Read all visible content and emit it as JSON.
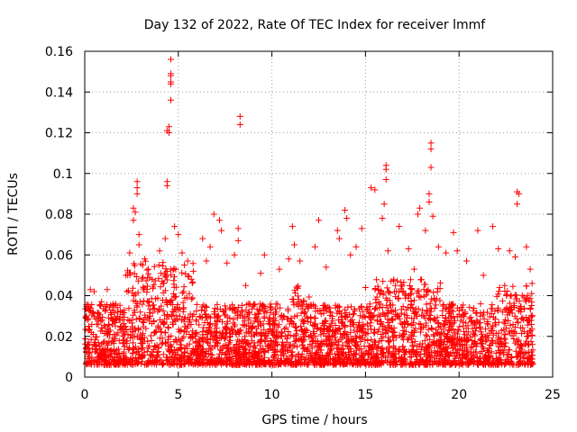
{
  "chart_data": {
    "type": "scatter",
    "title": "Day 132 of 2022, Rate Of TEC Index for receiver lmmf",
    "xlabel": "GPS time / hours",
    "ylabel": "ROTI / TECUs",
    "xlim": [
      0,
      25
    ],
    "ylim": [
      0,
      0.16
    ],
    "x_ticks": [
      0,
      5,
      10,
      15,
      20,
      25
    ],
    "x_tick_labels": [
      "0",
      "5",
      "10",
      "15",
      "20",
      "25"
    ],
    "y_ticks": [
      0,
      0.02,
      0.04,
      0.06,
      0.08,
      0.1,
      0.12,
      0.14,
      0.16
    ],
    "y_tick_labels": [
      "0",
      "0.02",
      "0.04",
      "0.06",
      "0.08",
      "0.1",
      "0.12",
      "0.14",
      "0.16"
    ],
    "grid": true,
    "marker": "+",
    "color": "#ff0000",
    "series": [
      {
        "name": "ROTI",
        "note": "dense baseline band between ~0.005 and ~0.035 TECU across 0-24 h, with scattered outliers",
        "points": [
          [
            0.3,
            0.043
          ],
          [
            0.5,
            0.042
          ],
          [
            0.9,
            0.037
          ],
          [
            1.2,
            0.043
          ],
          [
            1.5,
            0.035
          ],
          [
            2.2,
            0.05
          ],
          [
            2.4,
            0.061
          ],
          [
            2.6,
            0.077
          ],
          [
            2.6,
            0.083
          ],
          [
            2.7,
            0.081
          ],
          [
            2.8,
            0.093
          ],
          [
            2.8,
            0.096
          ],
          [
            2.8,
            0.09
          ],
          [
            2.9,
            0.07
          ],
          [
            2.9,
            0.065
          ],
          [
            3.2,
            0.058
          ],
          [
            3.4,
            0.053
          ],
          [
            4.0,
            0.062
          ],
          [
            4.3,
            0.068
          ],
          [
            4.4,
            0.094
          ],
          [
            4.4,
            0.096
          ],
          [
            4.4,
            0.121
          ],
          [
            4.5,
            0.123
          ],
          [
            4.5,
            0.12
          ],
          [
            4.6,
            0.145
          ],
          [
            4.6,
            0.148
          ],
          [
            4.6,
            0.144
          ],
          [
            4.6,
            0.149
          ],
          [
            4.6,
            0.156
          ],
          [
            4.6,
            0.136
          ],
          [
            4.8,
            0.074
          ],
          [
            5.0,
            0.07
          ],
          [
            5.2,
            0.061
          ],
          [
            5.5,
            0.057
          ],
          [
            5.8,
            0.052
          ],
          [
            6.3,
            0.068
          ],
          [
            6.5,
            0.057
          ],
          [
            6.7,
            0.064
          ],
          [
            6.9,
            0.08
          ],
          [
            7.2,
            0.077
          ],
          [
            7.3,
            0.072
          ],
          [
            7.6,
            0.056
          ],
          [
            8.0,
            0.06
          ],
          [
            8.2,
            0.073
          ],
          [
            8.2,
            0.067
          ],
          [
            8.3,
            0.128
          ],
          [
            8.3,
            0.124
          ],
          [
            8.6,
            0.045
          ],
          [
            9.4,
            0.051
          ],
          [
            9.6,
            0.06
          ],
          [
            10.4,
            0.053
          ],
          [
            10.9,
            0.058
          ],
          [
            11.1,
            0.074
          ],
          [
            11.2,
            0.065
          ],
          [
            11.5,
            0.057
          ],
          [
            12.3,
            0.064
          ],
          [
            12.5,
            0.077
          ],
          [
            12.9,
            0.054
          ],
          [
            13.5,
            0.072
          ],
          [
            13.6,
            0.068
          ],
          [
            13.9,
            0.082
          ],
          [
            14.0,
            0.078
          ],
          [
            14.2,
            0.06
          ],
          [
            14.5,
            0.064
          ],
          [
            14.8,
            0.073
          ],
          [
            15.0,
            0.044
          ],
          [
            15.3,
            0.093
          ],
          [
            15.5,
            0.092
          ],
          [
            15.9,
            0.078
          ],
          [
            16.0,
            0.085
          ],
          [
            16.1,
            0.104
          ],
          [
            16.1,
            0.102
          ],
          [
            16.1,
            0.097
          ],
          [
            16.2,
            0.062
          ],
          [
            16.8,
            0.074
          ],
          [
            17.3,
            0.063
          ],
          [
            17.6,
            0.053
          ],
          [
            17.8,
            0.08
          ],
          [
            17.9,
            0.083
          ],
          [
            18.2,
            0.072
          ],
          [
            18.4,
            0.086
          ],
          [
            18.4,
            0.09
          ],
          [
            18.5,
            0.115
          ],
          [
            18.5,
            0.112
          ],
          [
            18.5,
            0.103
          ],
          [
            18.6,
            0.079
          ],
          [
            18.9,
            0.064
          ],
          [
            19.3,
            0.061
          ],
          [
            19.7,
            0.071
          ],
          [
            19.9,
            0.062
          ],
          [
            20.4,
            0.057
          ],
          [
            21.0,
            0.072
          ],
          [
            21.3,
            0.05
          ],
          [
            21.8,
            0.074
          ],
          [
            22.1,
            0.063
          ],
          [
            22.7,
            0.062
          ],
          [
            23.0,
            0.059
          ],
          [
            23.1,
            0.091
          ],
          [
            23.1,
            0.085
          ],
          [
            23.2,
            0.09
          ],
          [
            23.6,
            0.064
          ],
          [
            23.8,
            0.053
          ],
          [
            23.9,
            0.046
          ]
        ]
      }
    ]
  }
}
